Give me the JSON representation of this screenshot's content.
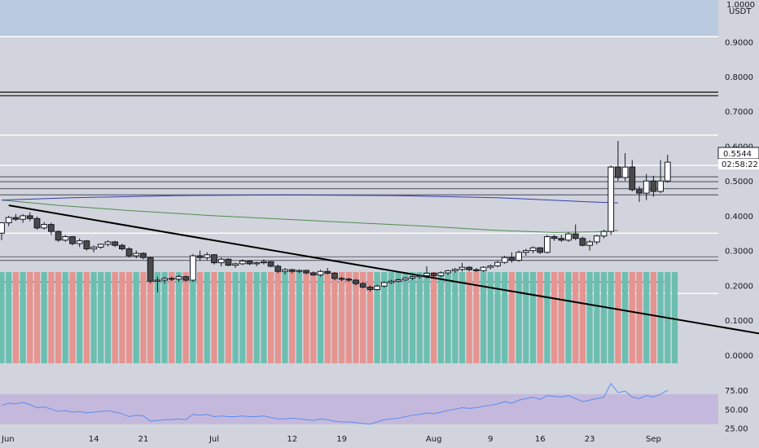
{
  "chart_data": {
    "type": "candlestick",
    "price_axis": {
      "currency_top": "1.0000",
      "currency_label": "USDT",
      "ticks": [
        "0.9000",
        "0.8000",
        "0.7000",
        "0.6000",
        "0.5000",
        "0.4000",
        "0.3000",
        "0.2000",
        "0.1000",
        "0.0000"
      ],
      "tick_values": [
        0.9,
        0.8,
        0.7,
        0.6,
        0.5,
        0.4,
        0.3,
        0.2,
        0.1,
        0.0
      ],
      "ylim": [
        -0.08,
        1.02
      ]
    },
    "last_price": "0.5544",
    "countdown": "02:58:22",
    "date_axis": {
      "labels": [
        "Jun",
        "14",
        "21",
        "Jul",
        "12",
        "19",
        "Aug",
        "9",
        "16",
        "23",
        "Sep"
      ],
      "label_days": [
        0,
        13,
        20,
        30,
        41,
        48,
        61,
        69,
        76,
        83,
        92
      ]
    },
    "horizontal_levels": [
      0.915,
      0.755,
      0.745,
      0.632,
      0.545,
      0.512,
      0.498,
      0.478,
      0.46,
      0.35,
      0.282,
      0.272,
      0.21,
      0.177
    ],
    "trendline": {
      "start": [
        1,
        0.43
      ],
      "end": [
        108,
        0.058
      ]
    },
    "ma_slow": [
      [
        0,
        0.445
      ],
      [
        10,
        0.452
      ],
      [
        25,
        0.458
      ],
      [
        40,
        0.46
      ],
      [
        55,
        0.458
      ],
      [
        70,
        0.452
      ],
      [
        83,
        0.44
      ],
      [
        87,
        0.437
      ]
    ],
    "ma_long": [
      [
        0,
        0.445
      ],
      [
        8,
        0.43
      ],
      [
        18,
        0.415
      ],
      [
        30,
        0.4
      ],
      [
        45,
        0.385
      ],
      [
        60,
        0.37
      ],
      [
        70,
        0.358
      ],
      [
        78,
        0.352
      ],
      [
        84,
        0.354
      ],
      [
        87,
        0.358
      ]
    ],
    "candles": [
      [
        0.35,
        0.38,
        0.33,
        0.38
      ],
      [
        0.38,
        0.4,
        0.37,
        0.395
      ],
      [
        0.395,
        0.405,
        0.385,
        0.39
      ],
      [
        0.39,
        0.405,
        0.38,
        0.4
      ],
      [
        0.4,
        0.41,
        0.385,
        0.392
      ],
      [
        0.392,
        0.398,
        0.36,
        0.365
      ],
      [
        0.365,
        0.382,
        0.36,
        0.375
      ],
      [
        0.375,
        0.38,
        0.345,
        0.355
      ],
      [
        0.355,
        0.358,
        0.325,
        0.33
      ],
      [
        0.33,
        0.345,
        0.325,
        0.34
      ],
      [
        0.34,
        0.342,
        0.315,
        0.32
      ],
      [
        0.32,
        0.335,
        0.31,
        0.328
      ],
      [
        0.328,
        0.33,
        0.3,
        0.305
      ],
      [
        0.305,
        0.315,
        0.295,
        0.31
      ],
      [
        0.31,
        0.32,
        0.305,
        0.318
      ],
      [
        0.318,
        0.33,
        0.312,
        0.325
      ],
      [
        0.325,
        0.328,
        0.31,
        0.315
      ],
      [
        0.315,
        0.32,
        0.3,
        0.305
      ],
      [
        0.305,
        0.31,
        0.28,
        0.285
      ],
      [
        0.285,
        0.3,
        0.278,
        0.292
      ],
      [
        0.292,
        0.295,
        0.275,
        0.28
      ],
      [
        0.28,
        0.282,
        0.205,
        0.212
      ],
      [
        0.212,
        0.225,
        0.18,
        0.215
      ],
      [
        0.215,
        0.225,
        0.205,
        0.22
      ],
      [
        0.22,
        0.225,
        0.212,
        0.218
      ],
      [
        0.218,
        0.23,
        0.21,
        0.225
      ],
      [
        0.225,
        0.228,
        0.21,
        0.215
      ],
      [
        0.215,
        0.29,
        0.21,
        0.285
      ],
      [
        0.285,
        0.3,
        0.27,
        0.28
      ],
      [
        0.28,
        0.295,
        0.272,
        0.288
      ],
      [
        0.288,
        0.29,
        0.26,
        0.265
      ],
      [
        0.265,
        0.28,
        0.255,
        0.275
      ],
      [
        0.275,
        0.278,
        0.255,
        0.258
      ],
      [
        0.258,
        0.265,
        0.25,
        0.262
      ],
      [
        0.262,
        0.275,
        0.258,
        0.27
      ],
      [
        0.27,
        0.272,
        0.258,
        0.262
      ],
      [
        0.262,
        0.268,
        0.255,
        0.265
      ],
      [
        0.265,
        0.275,
        0.26,
        0.268
      ],
      [
        0.268,
        0.27,
        0.252,
        0.255
      ],
      [
        0.255,
        0.26,
        0.235,
        0.24
      ],
      [
        0.24,
        0.25,
        0.232,
        0.245
      ],
      [
        0.245,
        0.248,
        0.235,
        0.24
      ],
      [
        0.24,
        0.246,
        0.235,
        0.243
      ],
      [
        0.243,
        0.245,
        0.232,
        0.236
      ],
      [
        0.236,
        0.24,
        0.228,
        0.23
      ],
      [
        0.23,
        0.245,
        0.225,
        0.24
      ],
      [
        0.24,
        0.25,
        0.232,
        0.235
      ],
      [
        0.235,
        0.238,
        0.215,
        0.22
      ],
      [
        0.22,
        0.225,
        0.212,
        0.218
      ],
      [
        0.218,
        0.222,
        0.21,
        0.215
      ],
      [
        0.215,
        0.218,
        0.2,
        0.205
      ],
      [
        0.205,
        0.21,
        0.192,
        0.195
      ],
      [
        0.195,
        0.2,
        0.182,
        0.188
      ],
      [
        0.188,
        0.202,
        0.185,
        0.198
      ],
      [
        0.198,
        0.212,
        0.194,
        0.208
      ],
      [
        0.208,
        0.216,
        0.204,
        0.212
      ],
      [
        0.212,
        0.22,
        0.208,
        0.216
      ],
      [
        0.216,
        0.224,
        0.212,
        0.221
      ],
      [
        0.221,
        0.228,
        0.215,
        0.225
      ],
      [
        0.225,
        0.232,
        0.22,
        0.228
      ],
      [
        0.228,
        0.255,
        0.22,
        0.235
      ],
      [
        0.235,
        0.238,
        0.222,
        0.228
      ],
      [
        0.228,
        0.24,
        0.224,
        0.236
      ],
      [
        0.236,
        0.245,
        0.23,
        0.242
      ],
      [
        0.242,
        0.25,
        0.236,
        0.246
      ],
      [
        0.246,
        0.265,
        0.24,
        0.252
      ],
      [
        0.252,
        0.255,
        0.24,
        0.245
      ],
      [
        0.245,
        0.25,
        0.238,
        0.242
      ],
      [
        0.242,
        0.255,
        0.238,
        0.252
      ],
      [
        0.252,
        0.26,
        0.246,
        0.256
      ],
      [
        0.256,
        0.27,
        0.252,
        0.266
      ],
      [
        0.266,
        0.285,
        0.262,
        0.28
      ],
      [
        0.28,
        0.295,
        0.265,
        0.272
      ],
      [
        0.272,
        0.3,
        0.268,
        0.295
      ],
      [
        0.295,
        0.305,
        0.285,
        0.3
      ],
      [
        0.3,
        0.312,
        0.292,
        0.308
      ],
      [
        0.308,
        0.31,
        0.29,
        0.295
      ],
      [
        0.295,
        0.345,
        0.292,
        0.34
      ],
      [
        0.34,
        0.345,
        0.328,
        0.335
      ],
      [
        0.335,
        0.345,
        0.325,
        0.33
      ],
      [
        0.33,
        0.352,
        0.325,
        0.348
      ],
      [
        0.348,
        0.375,
        0.33,
        0.335
      ],
      [
        0.335,
        0.34,
        0.312,
        0.315
      ],
      [
        0.315,
        0.33,
        0.3,
        0.325
      ],
      [
        0.325,
        0.345,
        0.318,
        0.342
      ],
      [
        0.342,
        0.36,
        0.335,
        0.355
      ],
      [
        0.355,
        0.545,
        0.345,
        0.54
      ],
      [
        0.54,
        0.615,
        0.5,
        0.51
      ],
      [
        0.51,
        0.58,
        0.5,
        0.54
      ],
      [
        0.54,
        0.56,
        0.47,
        0.475
      ],
      [
        0.475,
        0.485,
        0.44,
        0.465
      ],
      [
        0.465,
        0.52,
        0.445,
        0.5
      ],
      [
        0.5,
        0.515,
        0.455,
        0.47
      ],
      [
        0.47,
        0.56,
        0.465,
        0.5
      ],
      [
        0.5,
        0.575,
        0.495,
        0.554
      ]
    ],
    "volume": [
      1,
      1,
      1,
      1,
      1,
      1,
      1,
      1,
      1,
      1,
      1,
      1,
      1,
      1,
      1,
      1,
      1,
      1,
      1,
      1,
      1,
      1,
      1,
      1,
      1,
      1,
      1,
      1,
      1,
      1,
      1,
      1,
      1,
      1,
      1,
      1,
      1,
      1,
      1,
      1,
      1,
      1,
      1,
      1,
      1,
      1,
      1,
      1,
      1,
      1,
      1,
      1,
      1,
      1,
      1,
      1,
      1,
      1,
      1,
      1,
      1,
      1,
      1,
      1,
      1,
      1,
      1,
      1,
      1,
      1,
      1,
      1,
      1,
      1,
      1,
      1,
      1,
      1,
      1,
      1,
      1,
      1,
      1,
      1,
      1,
      1,
      1,
      1,
      1,
      1,
      1,
      1,
      1,
      1,
      1,
      1
    ],
    "rsi": {
      "ticks": [
        "75.00",
        "50.00",
        "25.00"
      ],
      "tick_values": [
        75,
        50,
        25
      ],
      "band": [
        30,
        70
      ],
      "ylim": [
        20,
        85
      ],
      "values": [
        55,
        58,
        57,
        59,
        56,
        52,
        53,
        50,
        47,
        48,
        46,
        47,
        45,
        46,
        47,
        48,
        46,
        44,
        40,
        42,
        41,
        34,
        35,
        36,
        36,
        37,
        36,
        43,
        42,
        43,
        40,
        41,
        40,
        40,
        41,
        40,
        40,
        41,
        39,
        37,
        37,
        38,
        37,
        36,
        35,
        37,
        36,
        34,
        33,
        33,
        32,
        31,
        30,
        33,
        36,
        37,
        38,
        40,
        42,
        43,
        45,
        44,
        46,
        48,
        50,
        52,
        51,
        52,
        54,
        55,
        57,
        60,
        58,
        62,
        64,
        66,
        63,
        68,
        67,
        66,
        68,
        64,
        60,
        62,
        64,
        66,
        84,
        72,
        74,
        66,
        64,
        68,
        66,
        70,
        75
      ]
    }
  }
}
